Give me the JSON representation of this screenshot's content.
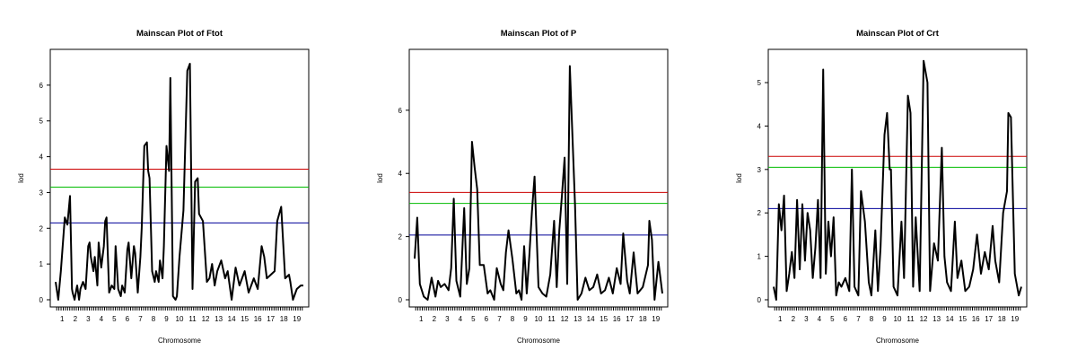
{
  "chart_data": [
    {
      "type": "line",
      "title": "Mainscan Plot of Ftot",
      "xlabel": "Chromosome",
      "ylabel": "lod",
      "chromosomes": [
        "1",
        "2",
        "3",
        "4",
        "5",
        "6",
        "7",
        "8",
        "9",
        "10",
        "11",
        "12",
        "13",
        "14",
        "15",
        "16",
        "17",
        "18",
        "19"
      ],
      "ylim": [
        0,
        6.8
      ],
      "yticks": [
        0,
        1,
        2,
        3,
        4,
        5,
        6
      ],
      "thresholds": [
        {
          "value": 3.65,
          "color": "#cc0000"
        },
        {
          "value": 3.15,
          "color": "#00bb00"
        },
        {
          "value": 2.15,
          "color": "#000099"
        }
      ],
      "x": [
        0.0,
        0.2,
        0.4,
        0.7,
        0.9,
        1.1,
        1.25,
        1.3,
        1.45,
        1.6,
        1.65,
        1.8,
        1.9,
        2.1,
        2.3,
        2.5,
        2.6,
        2.7,
        2.9,
        3.0,
        3.2,
        3.3,
        3.5,
        3.7,
        3.8,
        3.9,
        4.1,
        4.3,
        4.5,
        4.6,
        4.8,
        5.0,
        5.1,
        5.3,
        5.5,
        5.6,
        5.8,
        6.0,
        6.1,
        6.3,
        6.5,
        6.6,
        6.8,
        7.0,
        7.1,
        7.2,
        7.4,
        7.6,
        7.7,
        7.9,
        8.0,
        8.2,
        8.3,
        8.5,
        8.7,
        8.8,
        9.0,
        9.2,
        9.3,
        9.5,
        9.8,
        10.1,
        10.3,
        10.5,
        10.7,
        10.9,
        11.0,
        11.3,
        11.6,
        11.8,
        12.0,
        12.2,
        12.4,
        12.7,
        13.0,
        13.2,
        13.5,
        13.8,
        14.1,
        14.5,
        14.8,
        15.2,
        15.5,
        15.8,
        16.0,
        16.2,
        16.5,
        16.8,
        17.0,
        17.3,
        17.6,
        17.9,
        18.0,
        18.2,
        18.5,
        18.8,
        19.0
      ],
      "y": [
        0.5,
        0.0,
        0.8,
        2.3,
        2.1,
        2.9,
        0.3,
        0.2,
        0.0,
        0.3,
        0.4,
        0.0,
        0.3,
        0.5,
        0.3,
        1.5,
        1.6,
        1.2,
        0.8,
        1.2,
        0.4,
        1.6,
        0.9,
        1.5,
        2.2,
        2.3,
        0.2,
        0.4,
        0.3,
        1.5,
        0.3,
        0.1,
        0.4,
        0.2,
        1.4,
        1.6,
        0.6,
        1.5,
        1.3,
        0.2,
        1.2,
        2.0,
        4.3,
        4.4,
        3.6,
        3.4,
        0.8,
        0.5,
        0.8,
        0.5,
        1.1,
        0.6,
        1.5,
        4.3,
        3.6,
        6.2,
        0.1,
        0.0,
        0.1,
        1.2,
        2.5,
        6.4,
        6.6,
        0.3,
        3.3,
        3.4,
        2.4,
        2.2,
        0.5,
        0.6,
        1.0,
        0.4,
        0.8,
        1.1,
        0.6,
        0.8,
        0.0,
        0.9,
        0.4,
        0.8,
        0.2,
        0.6,
        0.3,
        1.5,
        1.2,
        0.6,
        0.7,
        0.8,
        2.2,
        2.6,
        0.6,
        0.7,
        0.5,
        0.0,
        0.3,
        0.4,
        0.4
      ]
    },
    {
      "type": "line",
      "title": "Mainscan Plot of P",
      "xlabel": "Chromosome",
      "ylabel": "lod",
      "chromosomes": [
        "1",
        "2",
        "3",
        "4",
        "5",
        "6",
        "7",
        "8",
        "9",
        "10",
        "11",
        "12",
        "13",
        "14",
        "15",
        "16",
        "17",
        "18",
        "19"
      ],
      "ylim": [
        0,
        7.7
      ],
      "yticks": [
        0,
        2,
        4,
        6
      ],
      "thresholds": [
        {
          "value": 3.4,
          "color": "#cc0000"
        },
        {
          "value": 3.05,
          "color": "#00bb00"
        },
        {
          "value": 2.05,
          "color": "#000099"
        }
      ],
      "x": [
        0.0,
        0.2,
        0.4,
        0.7,
        1.0,
        1.3,
        1.6,
        1.8,
        2.0,
        2.3,
        2.6,
        2.8,
        3.0,
        3.2,
        3.5,
        3.8,
        4.0,
        4.2,
        4.4,
        4.6,
        4.8,
        5.0,
        5.3,
        5.6,
        5.8,
        6.1,
        6.3,
        6.6,
        6.8,
        7.0,
        7.2,
        7.5,
        7.8,
        8.0,
        8.2,
        8.4,
        8.6,
        8.8,
        9.0,
        9.2,
        9.5,
        9.8,
        10.1,
        10.4,
        10.7,
        10.9,
        11.1,
        11.3,
        11.5,
        11.7,
        11.9,
        12.1,
        12.3,
        12.5,
        12.8,
        13.1,
        13.4,
        13.7,
        14.0,
        14.3,
        14.6,
        14.9,
        15.2,
        15.5,
        15.8,
        16.0,
        16.3,
        16.5,
        16.8,
        17.1,
        17.5,
        17.9,
        18.0,
        18.2,
        18.4,
        18.7,
        19.0
      ],
      "y": [
        1.3,
        2.6,
        0.5,
        0.1,
        0.0,
        0.7,
        0.1,
        0.6,
        0.4,
        0.5,
        0.3,
        1.0,
        3.2,
        0.6,
        0.1,
        2.9,
        0.5,
        1.0,
        5.0,
        4.2,
        3.5,
        1.1,
        1.1,
        0.2,
        0.3,
        0.0,
        1.0,
        0.5,
        0.3,
        1.5,
        2.2,
        1.3,
        0.2,
        0.3,
        0.0,
        1.7,
        0.2,
        1.4,
        2.8,
        3.9,
        0.4,
        0.2,
        0.1,
        0.8,
        2.5,
        0.4,
        2.2,
        3.3,
        4.5,
        0.5,
        7.4,
        5.2,
        3.0,
        0.0,
        0.2,
        0.7,
        0.3,
        0.4,
        0.8,
        0.2,
        0.3,
        0.7,
        0.2,
        1.0,
        0.5,
        2.1,
        0.6,
        0.2,
        1.5,
        0.2,
        0.4,
        1.1,
        2.5,
        1.9,
        0.0,
        1.2,
        0.2
      ]
    },
    {
      "type": "line",
      "title": "Mainscan Plot of Crt",
      "xlabel": "Chromosome",
      "ylabel": "lod",
      "chromosomes": [
        "1",
        "2",
        "3",
        "4",
        "5",
        "6",
        "7",
        "8",
        "9",
        "10",
        "11",
        "12",
        "13",
        "14",
        "15",
        "16",
        "17",
        "18",
        "19"
      ],
      "ylim": [
        0,
        5.6
      ],
      "yticks": [
        0,
        1,
        2,
        3,
        4,
        5
      ],
      "thresholds": [
        {
          "value": 3.3,
          "color": "#cc0000"
        },
        {
          "value": 3.05,
          "color": "#00bb00"
        },
        {
          "value": 2.1,
          "color": "#000099"
        }
      ],
      "x": [
        0.0,
        0.2,
        0.4,
        0.6,
        0.8,
        1.0,
        1.2,
        1.4,
        1.6,
        1.8,
        2.0,
        2.2,
        2.4,
        2.6,
        2.8,
        3.0,
        3.2,
        3.4,
        3.6,
        3.8,
        4.0,
        4.2,
        4.4,
        4.6,
        4.8,
        5.0,
        5.2,
        5.5,
        5.8,
        6.0,
        6.2,
        6.5,
        6.7,
        7.0,
        7.3,
        7.5,
        7.8,
        8.0,
        8.2,
        8.5,
        8.7,
        8.9,
        9.0,
        9.2,
        9.5,
        9.8,
        10.0,
        10.3,
        10.5,
        10.7,
        10.9,
        11.2,
        11.5,
        11.8,
        12.0,
        12.3,
        12.6,
        12.9,
        13.1,
        13.3,
        13.6,
        13.9,
        14.1,
        14.4,
        14.7,
        15.0,
        15.3,
        15.6,
        15.9,
        16.2,
        16.5,
        16.8,
        17.0,
        17.3,
        17.6,
        17.9,
        18.0,
        18.2,
        18.5,
        18.8,
        19.0
      ],
      "y": [
        0.3,
        0.0,
        2.2,
        1.6,
        2.4,
        0.2,
        0.6,
        1.1,
        0.5,
        2.3,
        0.7,
        2.2,
        0.9,
        2.0,
        1.6,
        0.5,
        1.2,
        2.3,
        0.5,
        5.3,
        0.6,
        1.8,
        1.0,
        1.9,
        0.1,
        0.4,
        0.3,
        0.5,
        0.2,
        3.0,
        0.3,
        0.1,
        2.5,
        1.8,
        0.4,
        0.1,
        1.6,
        0.2,
        1.2,
        3.8,
        4.3,
        3.0,
        3.0,
        0.3,
        0.1,
        1.8,
        0.5,
        4.7,
        4.3,
        0.3,
        1.9,
        0.2,
        5.5,
        5.0,
        0.2,
        1.3,
        0.9,
        3.5,
        1.0,
        0.4,
        0.2,
        1.8,
        0.5,
        0.9,
        0.2,
        0.3,
        0.7,
        1.5,
        0.6,
        1.1,
        0.7,
        1.7,
        0.9,
        0.4,
        2.0,
        2.5,
        4.3,
        4.2,
        0.6,
        0.1,
        0.3
      ]
    }
  ]
}
